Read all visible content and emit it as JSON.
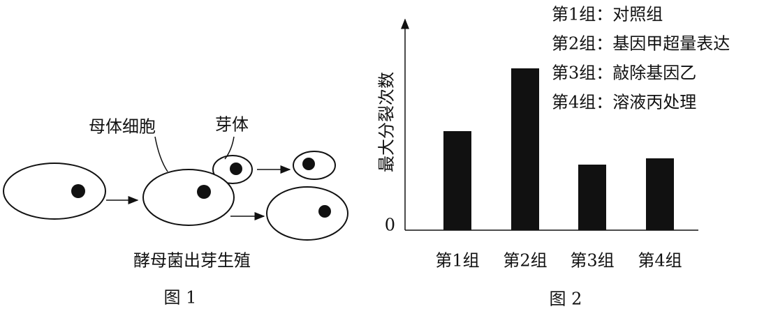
{
  "figure1": {
    "mother_label": "母体细胞",
    "bud_label": "芽体",
    "title": "酵母菌出芽生殖",
    "caption": "图 1"
  },
  "chart_data": {
    "type": "bar",
    "y_label": "最大分裂次数",
    "categories": [
      "第1组",
      "第2组",
      "第3组",
      "第4组"
    ],
    "values": [
      142,
      232,
      94,
      103
    ],
    "color": "#111111",
    "ylim": [
      0,
      300
    ],
    "yticks": [
      0
    ],
    "annotations": [
      "第1组：对照组",
      "第2组：基因甲超量表达",
      "第3组：敲除基因乙",
      "第4组：溶液丙处理"
    ]
  },
  "figure2_caption": "图 2"
}
